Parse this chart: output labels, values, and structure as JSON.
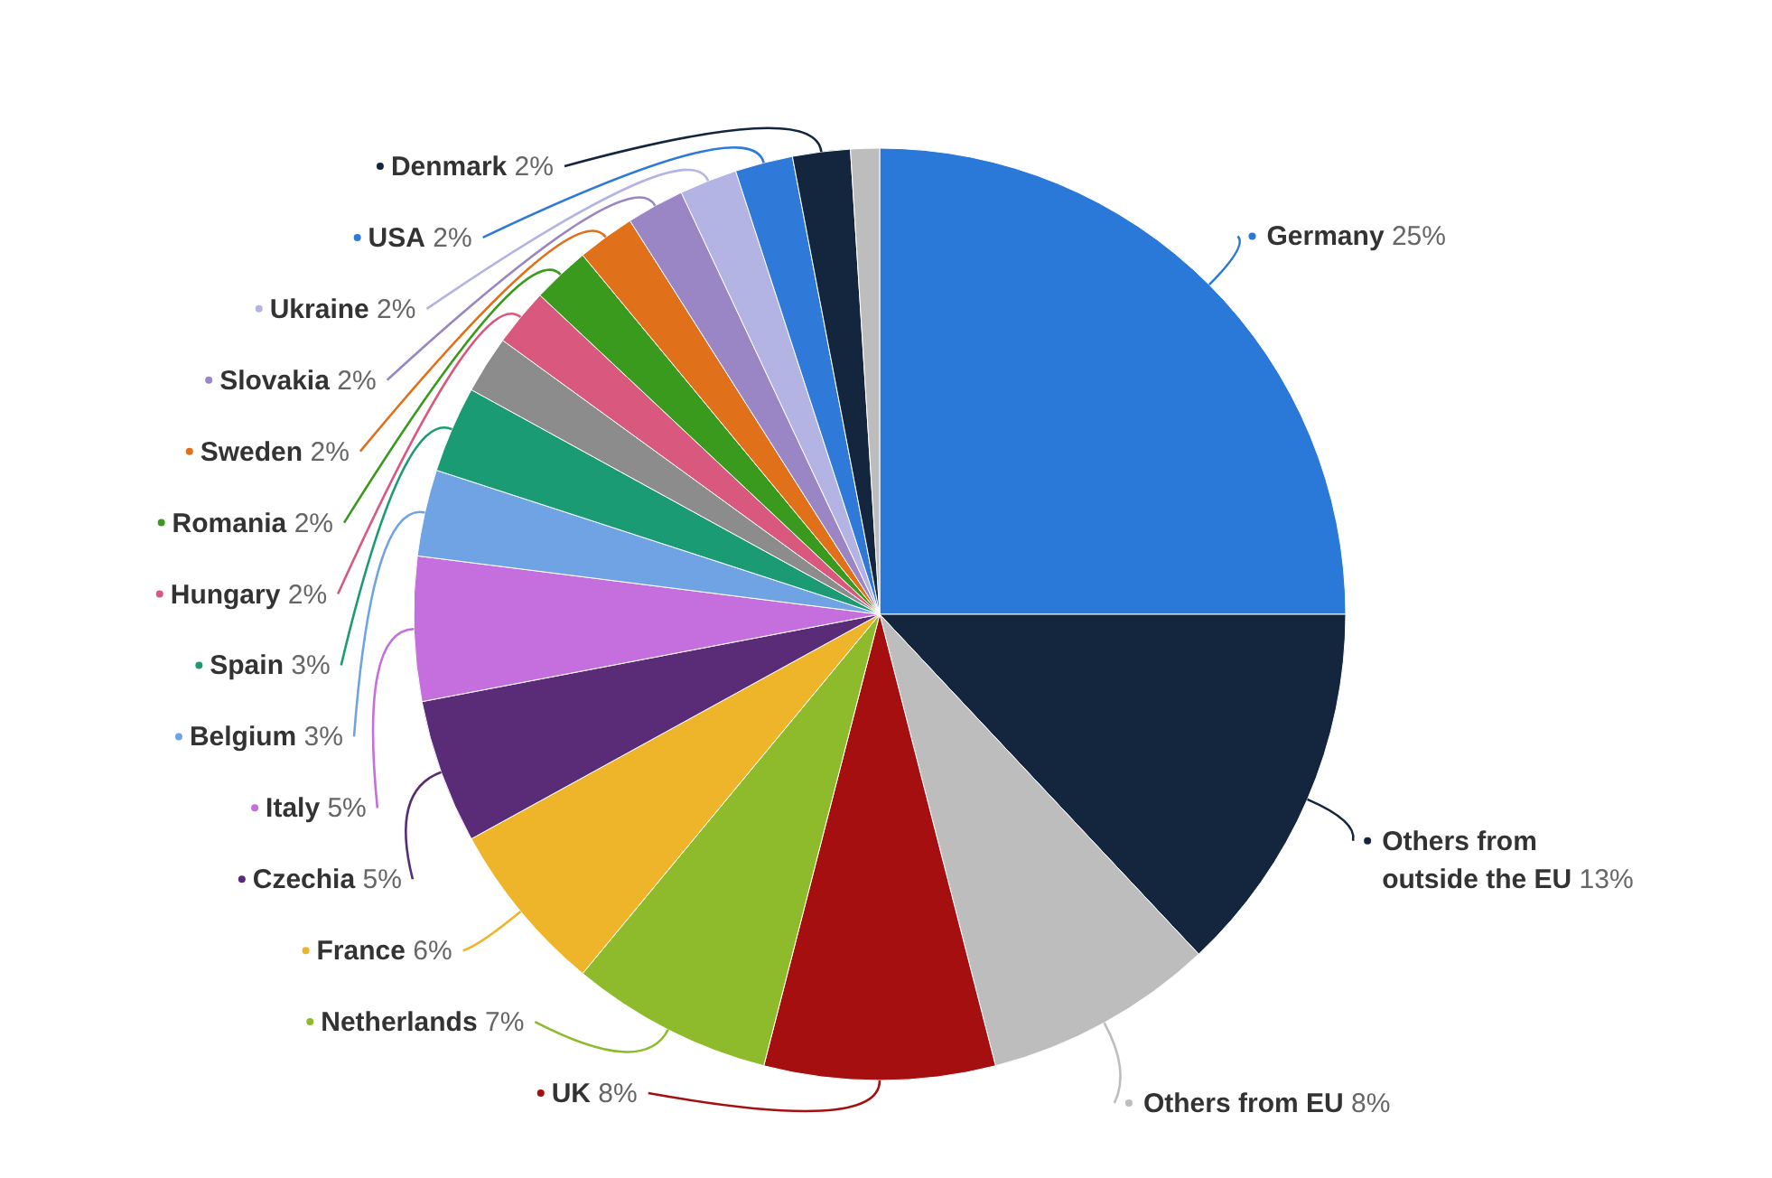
{
  "chart_data": {
    "type": "pie",
    "legend": "left",
    "categories": [
      "Germany",
      "Others from outside the EU",
      "Others from EU",
      "UK",
      "Netherlands",
      "France",
      "Czechia",
      "Italy",
      "Belgium",
      "Spain",
      null,
      "Hungary",
      "Romania",
      "Sweden",
      "Slovakia",
      "Ukraine",
      "USA",
      "Denmark",
      null
    ],
    "values": [
      25,
      13,
      8,
      8,
      7,
      6,
      5,
      5,
      3,
      3,
      2,
      2,
      2,
      2,
      2,
      2,
      2,
      2,
      1
    ],
    "value_labels": [
      "25%",
      "13%",
      "8%",
      "8%",
      "7%",
      "6%",
      "5%",
      "5%",
      "3%",
      "3%",
      null,
      "2%",
      "2%",
      "2%",
      "2%",
      "2%",
      "2%",
      "2%",
      null
    ],
    "colors": [
      "#2a78d8",
      "#13263d",
      "#bdbdbd",
      "#a50f0f",
      "#8dbb2c",
      "#efb52a",
      "#5a2c78",
      "#c56fde",
      "#6fa3e3",
      "#1b9b74",
      "#8c8c8c",
      "#d9587e",
      "#3a9a1e",
      "#e0701a",
      "#9a86c4",
      "#b4b4e4",
      "#2f79d9",
      "#13263d",
      "#bdbdbd"
    ]
  }
}
